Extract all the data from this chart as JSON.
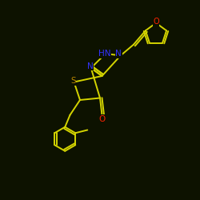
{
  "bg_color": "#0d1200",
  "bond_color": "#d4d400",
  "atom_colors": {
    "N": "#3333ff",
    "S": "#bb8800",
    "O": "#ff2200",
    "C": "#d4d400"
  },
  "figsize": [
    2.5,
    2.5
  ],
  "dpi": 100
}
